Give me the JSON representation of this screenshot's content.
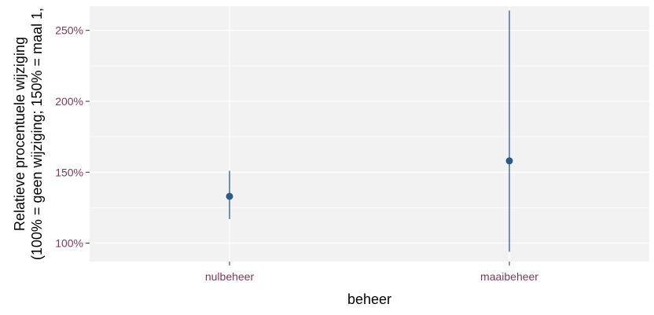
{
  "chart_data": {
    "type": "scatter",
    "subtype": "point-with-errorbar",
    "x_categories": [
      "nulbeheer",
      "maaibeheer"
    ],
    "points": [
      {
        "category": "nulbeheer",
        "estimate": 133,
        "lower": 117,
        "upper": 151
      },
      {
        "category": "maaibeheer",
        "estimate": 158,
        "lower": 94,
        "upper": 264
      }
    ],
    "xlabel": "beheer",
    "ylabel_line1": "Relatieve procentuele wijziging",
    "ylabel_line2": "(100% = geen wijziging; 150% = maal 1,",
    "yticks": [
      100,
      150,
      200,
      250
    ],
    "ytick_labels": [
      "100%",
      "150%",
      "200%",
      "250%"
    ],
    "ylim": [
      87,
      267
    ],
    "grid": true,
    "legend": "none",
    "colors": {
      "panel_background": "#f2f2f2",
      "grid": "#ffffff",
      "point": "#2e5a88",
      "tick_label": "#7a3a5e",
      "tick": "#333333",
      "axis_title": "#000000"
    }
  }
}
